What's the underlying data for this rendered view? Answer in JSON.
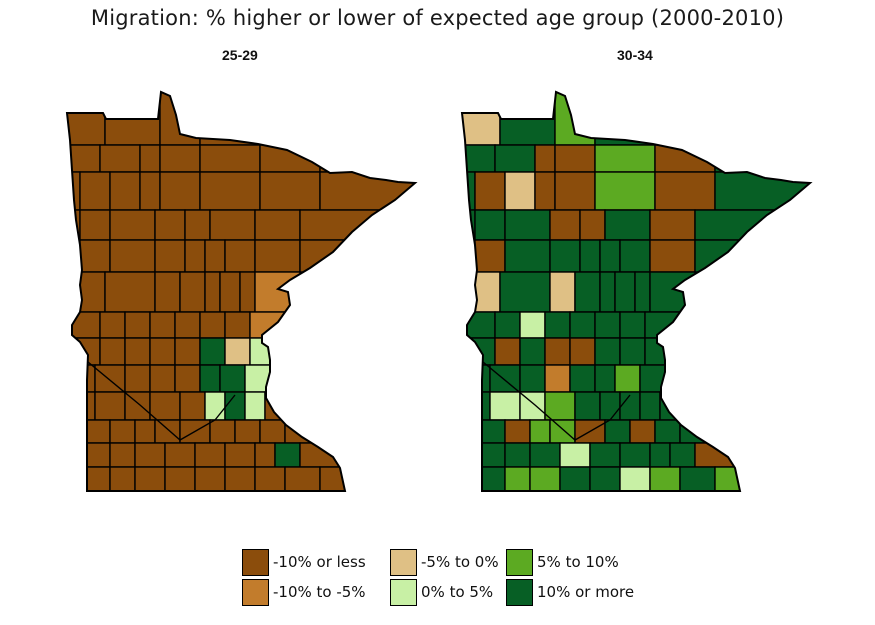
{
  "title": "Migration: % higher or lower of expected age group (2000-2010)",
  "panels": [
    {
      "label": "25-29"
    },
    {
      "label": "30-34"
    }
  ],
  "legend": [
    {
      "label": "-10% or less",
      "color": "#8B4D0C"
    },
    {
      "label": "-10% to -5%",
      "color": "#C27C2C"
    },
    {
      "label": "-5% to 0%",
      "color": "#DFC085"
    },
    {
      "label": "0% to 5%",
      "color": "#C8F0A5"
    },
    {
      "label": "5% to 10%",
      "color": "#5CAA22"
    },
    {
      "label": "10% or more",
      "color": "#075F25"
    }
  ]
}
